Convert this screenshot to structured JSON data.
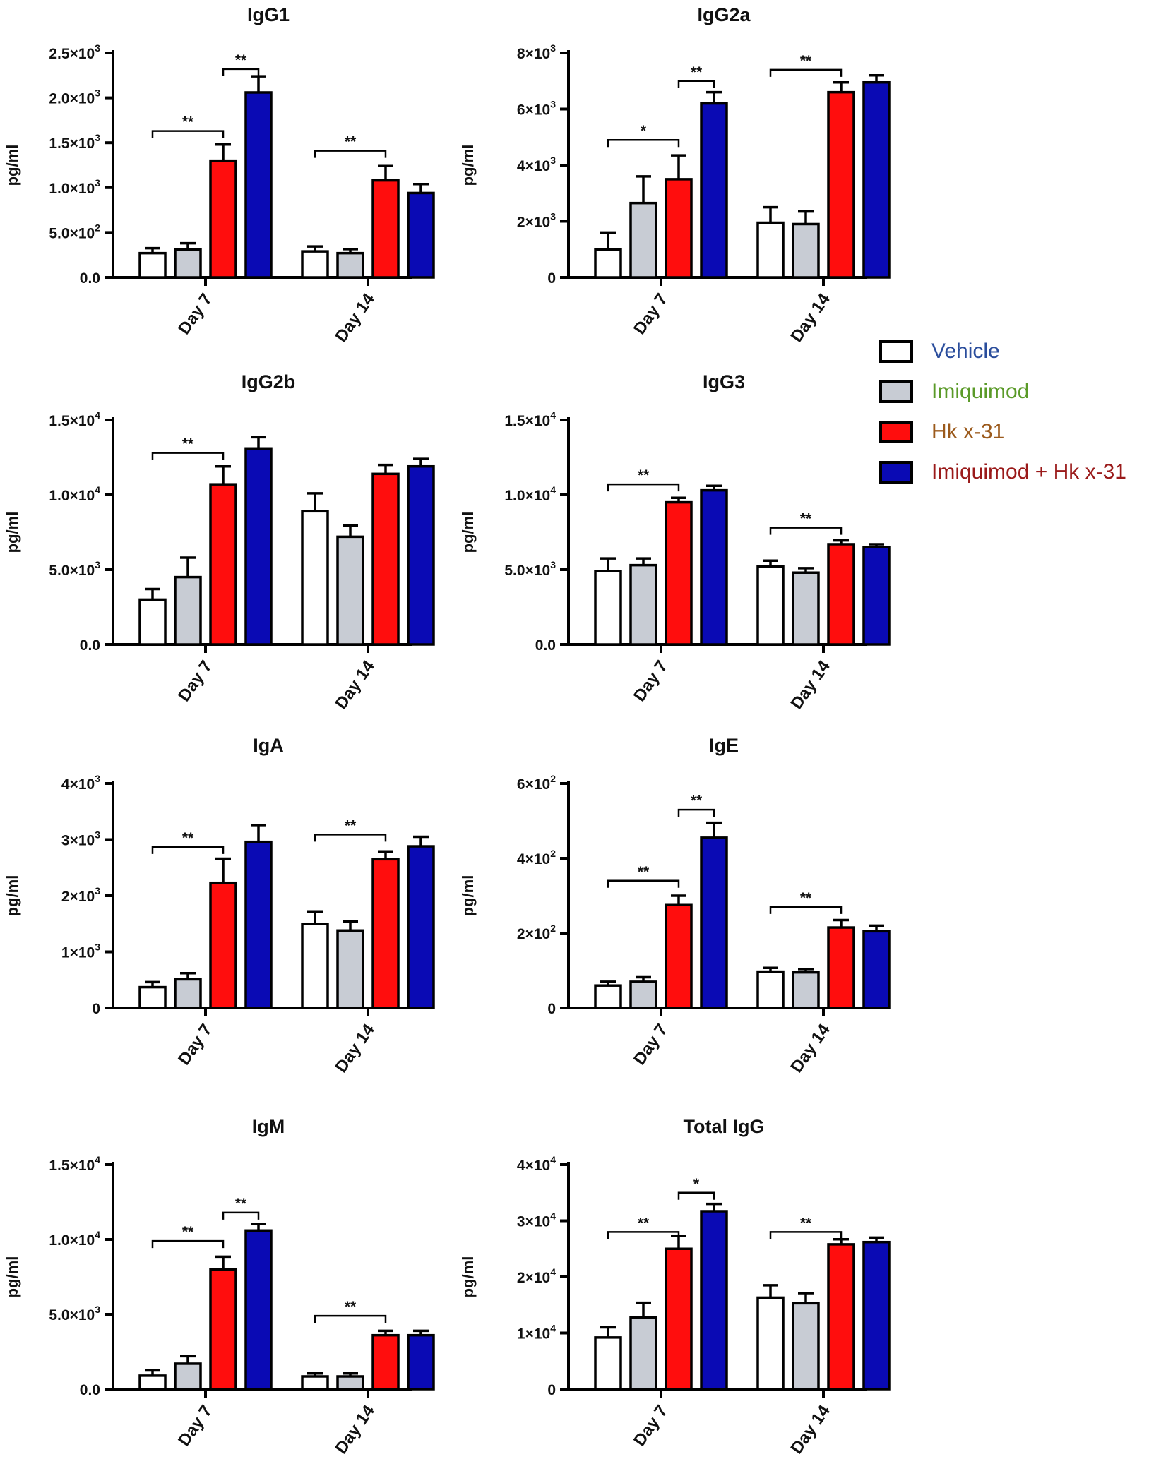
{
  "legend": {
    "items": [
      {
        "label": "Vehicle",
        "fill": "#ffffff",
        "text_color": "#2a4d9c"
      },
      {
        "label": "Imiquimod",
        "fill": "#c8ccd4",
        "text_color": "#5a9a28"
      },
      {
        "label": "Hk x-31",
        "fill": "#ff0d0d",
        "text_color": "#9b5a1c"
      },
      {
        "label": "Imiquimod + Hk x-31",
        "fill": "#0a0ab4",
        "text_color": "#9a1a1a"
      }
    ]
  },
  "chart_data": [
    {
      "type": "bar",
      "title": "IgG1",
      "ylabel": "pg/ml",
      "categories": [
        "Day 7",
        "Day 14"
      ],
      "ylim": [
        0,
        2500
      ],
      "yticks": [
        {
          "value": 0,
          "label": "0.0"
        },
        {
          "value": 500,
          "label": "5.0×10",
          "exp": "2"
        },
        {
          "value": 1000,
          "label": "1.0×10",
          "exp": "3"
        },
        {
          "value": 1500,
          "label": "1.5×10",
          "exp": "3"
        },
        {
          "value": 2000,
          "label": "2.0×10",
          "exp": "3"
        },
        {
          "value": 2500,
          "label": "2.5×10",
          "exp": "3"
        }
      ],
      "series": [
        {
          "name": "Vehicle",
          "values": [
            270,
            290
          ],
          "errors": [
            55,
            55
          ]
        },
        {
          "name": "Imiquimod",
          "values": [
            310,
            270
          ],
          "errors": [
            70,
            45
          ]
        },
        {
          "name": "Hk x-31",
          "values": [
            1300,
            1080
          ],
          "errors": [
            180,
            160
          ]
        },
        {
          "name": "Imiquimod + Hk x-31",
          "values": [
            2060,
            940
          ],
          "errors": [
            180,
            100
          ]
        }
      ],
      "significance": [
        {
          "group": 0,
          "from": 0,
          "to": 2,
          "y": 1630,
          "label": "**"
        },
        {
          "group": 0,
          "from": 2,
          "to": 3,
          "y": 2320,
          "label": "**"
        },
        {
          "group": 1,
          "from": 0,
          "to": 2,
          "y": 1410,
          "label": "**"
        }
      ]
    },
    {
      "type": "bar",
      "title": "IgG2a",
      "ylabel": "pg/ml",
      "categories": [
        "Day 7",
        "Day 14"
      ],
      "ylim": [
        0,
        8000
      ],
      "yticks": [
        {
          "value": 0,
          "label": "0"
        },
        {
          "value": 2000,
          "label": "2×10",
          "exp": "3"
        },
        {
          "value": 4000,
          "label": "4×10",
          "exp": "3"
        },
        {
          "value": 6000,
          "label": "6×10",
          "exp": "3"
        },
        {
          "value": 8000,
          "label": "8×10",
          "exp": "3"
        }
      ],
      "series": [
        {
          "name": "Vehicle",
          "values": [
            1000,
            1950
          ],
          "errors": [
            600,
            550
          ]
        },
        {
          "name": "Imiquimod",
          "values": [
            2650,
            1900
          ],
          "errors": [
            950,
            450
          ]
        },
        {
          "name": "Hk x-31",
          "values": [
            3500,
            6600
          ],
          "errors": [
            850,
            350
          ]
        },
        {
          "name": "Imiquimod + Hk x-31",
          "values": [
            6200,
            6950
          ],
          "errors": [
            400,
            250
          ]
        }
      ],
      "significance": [
        {
          "group": 0,
          "from": 0,
          "to": 2,
          "y": 4900,
          "label": "*"
        },
        {
          "group": 0,
          "from": 2,
          "to": 3,
          "y": 7000,
          "label": "**"
        },
        {
          "group": 1,
          "from": 0,
          "to": 2,
          "y": 7400,
          "label": "**"
        }
      ]
    },
    {
      "type": "bar",
      "title": "IgG2b",
      "ylabel": "pg/ml",
      "categories": [
        "Day 7",
        "Day 14"
      ],
      "ylim": [
        0,
        15000
      ],
      "yticks": [
        {
          "value": 0,
          "label": "0.0"
        },
        {
          "value": 5000,
          "label": "5.0×10",
          "exp": "3"
        },
        {
          "value": 10000,
          "label": "1.0×10",
          "exp": "4"
        },
        {
          "value": 15000,
          "label": "1.5×10",
          "exp": "4"
        }
      ],
      "series": [
        {
          "name": "Vehicle",
          "values": [
            3000,
            8900
          ],
          "errors": [
            700,
            1200
          ]
        },
        {
          "name": "Imiquimod",
          "values": [
            4500,
            7200
          ],
          "errors": [
            1300,
            750
          ]
        },
        {
          "name": "Hk x-31",
          "values": [
            10700,
            11400
          ],
          "errors": [
            1200,
            600
          ]
        },
        {
          "name": "Imiquimod + Hk x-31",
          "values": [
            13100,
            11900
          ],
          "errors": [
            750,
            500
          ]
        }
      ],
      "significance": [
        {
          "group": 0,
          "from": 0,
          "to": 2,
          "y": 12800,
          "label": "**"
        }
      ]
    },
    {
      "type": "bar",
      "title": "IgG3",
      "ylabel": "pg/ml",
      "categories": [
        "Day 7",
        "Day 14"
      ],
      "ylim": [
        0,
        15000
      ],
      "yticks": [
        {
          "value": 0,
          "label": "0.0"
        },
        {
          "value": 5000,
          "label": "5.0×10",
          "exp": "3"
        },
        {
          "value": 10000,
          "label": "1.0×10",
          "exp": "4"
        },
        {
          "value": 15000,
          "label": "1.5×10",
          "exp": "4"
        }
      ],
      "series": [
        {
          "name": "Vehicle",
          "values": [
            4900,
            5200
          ],
          "errors": [
            850,
            400
          ]
        },
        {
          "name": "Imiquimod",
          "values": [
            5300,
            4800
          ],
          "errors": [
            450,
            300
          ]
        },
        {
          "name": "Hk x-31",
          "values": [
            9500,
            6700
          ],
          "errors": [
            300,
            250
          ]
        },
        {
          "name": "Imiquimod + Hk x-31",
          "values": [
            10300,
            6500
          ],
          "errors": [
            300,
            200
          ]
        }
      ],
      "significance": [
        {
          "group": 0,
          "from": 0,
          "to": 2,
          "y": 10700,
          "label": "**"
        },
        {
          "group": 1,
          "from": 0,
          "to": 2,
          "y": 7800,
          "label": "**"
        }
      ]
    },
    {
      "type": "bar",
      "title": "IgA",
      "ylabel": "pg/ml",
      "categories": [
        "Day 7",
        "Day 14"
      ],
      "ylim": [
        0,
        4000
      ],
      "yticks": [
        {
          "value": 0,
          "label": "0"
        },
        {
          "value": 1000,
          "label": "1×10",
          "exp": "3"
        },
        {
          "value": 2000,
          "label": "2×10",
          "exp": "3"
        },
        {
          "value": 3000,
          "label": "3×10",
          "exp": "3"
        },
        {
          "value": 4000,
          "label": "4×10",
          "exp": "3"
        }
      ],
      "series": [
        {
          "name": "Vehicle",
          "values": [
            370,
            1500
          ],
          "errors": [
            90,
            220
          ]
        },
        {
          "name": "Imiquimod",
          "values": [
            510,
            1380
          ],
          "errors": [
            110,
            160
          ]
        },
        {
          "name": "Hk x-31",
          "values": [
            2230,
            2650
          ],
          "errors": [
            430,
            140
          ]
        },
        {
          "name": "Imiquimod + Hk x-31",
          "values": [
            2960,
            2880
          ],
          "errors": [
            300,
            170
          ]
        }
      ],
      "significance": [
        {
          "group": 0,
          "from": 0,
          "to": 2,
          "y": 2870,
          "label": "**"
        },
        {
          "group": 1,
          "from": 0,
          "to": 2,
          "y": 3090,
          "label": "**"
        }
      ]
    },
    {
      "type": "bar",
      "title": "IgE",
      "ylabel": "pg/ml",
      "categories": [
        "Day 7",
        "Day 14"
      ],
      "ylim": [
        0,
        600
      ],
      "yticks": [
        {
          "value": 0,
          "label": "0"
        },
        {
          "value": 200,
          "label": "2×10",
          "exp": "2"
        },
        {
          "value": 400,
          "label": "4×10",
          "exp": "2"
        },
        {
          "value": 600,
          "label": "6×10",
          "exp": "2"
        }
      ],
      "series": [
        {
          "name": "Vehicle",
          "values": [
            60,
            97
          ],
          "errors": [
            10,
            10
          ]
        },
        {
          "name": "Imiquimod",
          "values": [
            70,
            95
          ],
          "errors": [
            12,
            9
          ]
        },
        {
          "name": "Hk x-31",
          "values": [
            275,
            215
          ],
          "errors": [
            25,
            20
          ]
        },
        {
          "name": "Imiquimod + Hk x-31",
          "values": [
            455,
            205
          ],
          "errors": [
            40,
            15
          ]
        }
      ],
      "significance": [
        {
          "group": 0,
          "from": 0,
          "to": 2,
          "y": 340,
          "label": "**"
        },
        {
          "group": 0,
          "from": 2,
          "to": 3,
          "y": 530,
          "label": "**"
        },
        {
          "group": 1,
          "from": 0,
          "to": 2,
          "y": 270,
          "label": "**"
        }
      ]
    },
    {
      "type": "bar",
      "title": "IgM",
      "ylabel": "pg/ml",
      "categories": [
        "Day 7",
        "Day 14"
      ],
      "ylim": [
        0,
        15000
      ],
      "yticks": [
        {
          "value": 0,
          "label": "0.0"
        },
        {
          "value": 5000,
          "label": "5.0×10",
          "exp": "3"
        },
        {
          "value": 10000,
          "label": "1.0×10",
          "exp": "4"
        },
        {
          "value": 15000,
          "label": "1.5×10",
          "exp": "4"
        }
      ],
      "series": [
        {
          "name": "Vehicle",
          "values": [
            900,
            850
          ],
          "errors": [
            350,
            200
          ]
        },
        {
          "name": "Imiquimod",
          "values": [
            1700,
            850
          ],
          "errors": [
            500,
            200
          ]
        },
        {
          "name": "Hk x-31",
          "values": [
            8000,
            3600
          ],
          "errors": [
            850,
            300
          ]
        },
        {
          "name": "Imiquimod + Hk x-31",
          "values": [
            10600,
            3600
          ],
          "errors": [
            450,
            300
          ]
        }
      ],
      "significance": [
        {
          "group": 0,
          "from": 0,
          "to": 2,
          "y": 9900,
          "label": "**"
        },
        {
          "group": 0,
          "from": 2,
          "to": 3,
          "y": 11800,
          "label": "**"
        },
        {
          "group": 1,
          "from": 0,
          "to": 2,
          "y": 4900,
          "label": "**"
        }
      ]
    },
    {
      "type": "bar",
      "title": "Total IgG",
      "ylabel": "pg/ml",
      "categories": [
        "Day 7",
        "Day 14"
      ],
      "ylim": [
        0,
        40000
      ],
      "yticks": [
        {
          "value": 0,
          "label": "0"
        },
        {
          "value": 10000,
          "label": "1×10",
          "exp": "4"
        },
        {
          "value": 20000,
          "label": "2×10",
          "exp": "4"
        },
        {
          "value": 30000,
          "label": "3×10",
          "exp": "4"
        },
        {
          "value": 40000,
          "label": "4×10",
          "exp": "4"
        }
      ],
      "series": [
        {
          "name": "Vehicle",
          "values": [
            9200,
            16300
          ],
          "errors": [
            1800,
            2200
          ]
        },
        {
          "name": "Imiquimod",
          "values": [
            12800,
            15300
          ],
          "errors": [
            2600,
            1800
          ]
        },
        {
          "name": "Hk x-31",
          "values": [
            25000,
            25800
          ],
          "errors": [
            2300,
            900
          ]
        },
        {
          "name": "Imiquimod + Hk x-31",
          "values": [
            31700,
            26200
          ],
          "errors": [
            1300,
            800
          ]
        }
      ],
      "significance": [
        {
          "group": 0,
          "from": 0,
          "to": 2,
          "y": 28000,
          "label": "**"
        },
        {
          "group": 0,
          "from": 2,
          "to": 3,
          "y": 35000,
          "label": "*"
        },
        {
          "group": 1,
          "from": 0,
          "to": 2,
          "y": 28000,
          "label": "**"
        }
      ]
    }
  ]
}
